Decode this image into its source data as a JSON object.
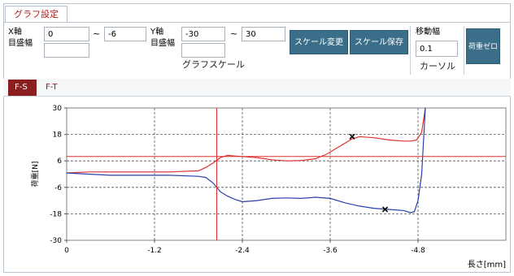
{
  "tab": {
    "label": "グラフ設定"
  },
  "controls": {
    "x_axis_label": "X軸",
    "x_gridwidth_label": "目盛幅",
    "x_min": "0",
    "x_max": "-6",
    "x_gridwidth": "",
    "y_axis_label": "Y軸",
    "y_gridwidth_label": "目盛幅",
    "y_min": "-30",
    "y_max": "30",
    "y_gridwidth": "",
    "tilde": "~",
    "group_caption": "グラフスケール",
    "scale_change_button": "スケール変更",
    "scale_save_button": "スケール保存",
    "move_width_label": "移動幅",
    "move_width_value": "0.1",
    "cursor_caption": "カーソル",
    "load_zero_button": "荷重ゼロ"
  },
  "subtabs": {
    "active": "F-S",
    "inactive": "F-T"
  },
  "chart_data": {
    "type": "line",
    "ylabel": "荷重[N]",
    "xlabel": "長さ[mm]",
    "xlim": [
      0,
      -6
    ],
    "ylim": [
      -30,
      30
    ],
    "x_ticks": [
      0,
      -1.2,
      -2.4,
      -3.6,
      -4.8
    ],
    "y_ticks": [
      30,
      18,
      6,
      -6,
      -18,
      -30
    ],
    "grid": true,
    "cursor": {
      "x": -2.05,
      "y": 8
    },
    "series": [
      {
        "color": "#e03030",
        "x": [
          0,
          -0.3,
          -0.6,
          -1.0,
          -1.4,
          -1.8,
          -1.9,
          -2.0,
          -2.1,
          -2.2,
          -2.3,
          -2.4,
          -2.6,
          -2.8,
          -3.0,
          -3.2,
          -3.4,
          -3.55,
          -3.7,
          -3.8,
          -3.9,
          -4.0,
          -4.2,
          -4.4,
          -4.6,
          -4.7,
          -4.78,
          -4.85,
          -4.9
        ],
        "y": [
          0.5,
          1,
          1,
          1,
          1,
          1.5,
          3,
          5,
          7.5,
          8.5,
          8.2,
          8,
          7.5,
          6.5,
          6,
          6.2,
          7,
          9,
          12,
          14,
          16,
          17,
          16.5,
          15.5,
          15,
          15,
          15.5,
          19,
          30
        ]
      },
      {
        "color": "#2b3fa8",
        "x": [
          0,
          -0.3,
          -0.6,
          -1.0,
          -1.4,
          -1.8,
          -1.9,
          -2.0,
          -2.1,
          -2.2,
          -2.3,
          -2.4,
          -2.6,
          -2.8,
          -3.0,
          -3.2,
          -3.4,
          -3.6,
          -3.8,
          -4.0,
          -4.2,
          -4.4,
          -4.6,
          -4.7,
          -4.75,
          -4.8,
          -4.85,
          -4.9
        ],
        "y": [
          0.5,
          0,
          -0.5,
          -0.5,
          -0.5,
          -1,
          -1.5,
          -4,
          -8,
          -10,
          -11.5,
          -12.5,
          -12,
          -11,
          -10.8,
          -11,
          -10.5,
          -11,
          -13,
          -14.5,
          -15.5,
          -16,
          -16.5,
          -17.5,
          -17,
          -12,
          0,
          30
        ]
      }
    ],
    "markers": [
      {
        "x": -3.9,
        "y": 17,
        "symbol": "x"
      },
      {
        "x": -4.35,
        "y": -16,
        "symbol": "x"
      }
    ]
  }
}
